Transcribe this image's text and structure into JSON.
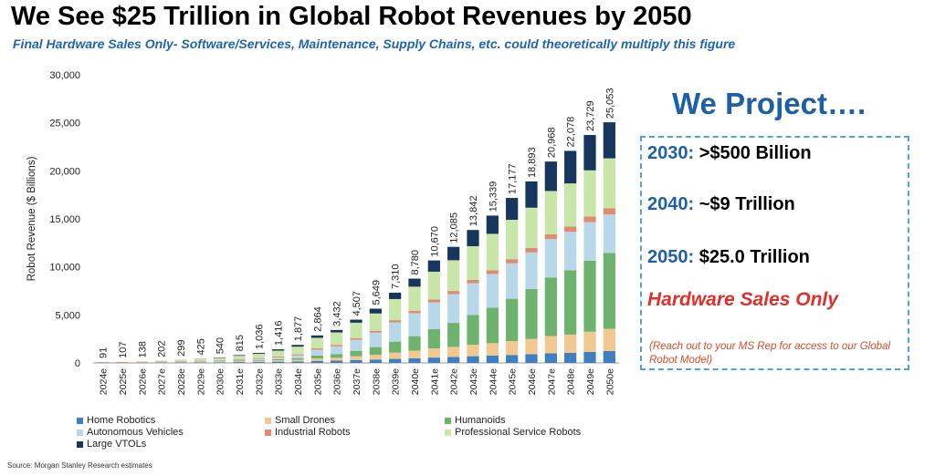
{
  "title": "We See $25 Trillion in Global Robot Revenues by 2050",
  "subtitle": "Final Hardware Sales Only- Software/Services, Maintenance, Supply Chains, etc. could theoretically multiply this figure",
  "source": "Source: Morgan Stanley Research estimates",
  "projection": {
    "heading": "We Project….",
    "lines": [
      {
        "year": "2030:",
        "value": ">$500 Billion"
      },
      {
        "year": "2040:",
        "value": "~$9 Trillion"
      },
      {
        "year": "2050:",
        "value": "$25.0 Trillion"
      }
    ],
    "hardware_note": "Hardware Sales Only",
    "contact_note": "(Reach out to your MS Rep for access to our Global Robot Model)"
  },
  "chart_data": {
    "type": "bar",
    "stacked": true,
    "ylabel": "Robot Revenue ($ Billions)",
    "xlabel": "",
    "ylim": [
      0,
      30000
    ],
    "yticks": [
      "0",
      "5,000",
      "10,000",
      "15,000",
      "20,000",
      "25,000",
      "30,000"
    ],
    "ytick_values": [
      0,
      5000,
      10000,
      15000,
      20000,
      25000,
      30000
    ],
    "categories": [
      "2024e",
      "2025e",
      "2026e",
      "2027e",
      "2028e",
      "2029e",
      "2030e",
      "2031e",
      "2032e",
      "2033e",
      "2034e",
      "2035e",
      "2036e",
      "2037e",
      "2038e",
      "2039e",
      "2040e",
      "2041e",
      "2042e",
      "2043e",
      "2044e",
      "2045e",
      "2046e",
      "2047e",
      "2048e",
      "2049e",
      "2050e"
    ],
    "totals": [
      91,
      107,
      138,
      202,
      299,
      425,
      540,
      815,
      1036,
      1416,
      1877,
      2864,
      3432,
      4507,
      5649,
      7310,
      8780,
      10670,
      12085,
      13842,
      15339,
      17177,
      18893,
      20968,
      22078,
      23729,
      25053
    ],
    "total_labels": [
      "91",
      "107",
      "138",
      "202",
      "299",
      "425",
      "540",
      "815",
      "1,036",
      "1,416",
      "1,877",
      "2,864",
      "3,432",
      "4,507",
      "5,649",
      "7,310",
      "8,780",
      "10,670",
      "12,085",
      "13,842",
      "15,339",
      "17,177",
      "18,893",
      "20,968",
      "22,078",
      "23,729",
      "25,053"
    ],
    "legend_position": "bottom",
    "series": [
      {
        "name": "Home Robotics",
        "color": "#3f7fc0",
        "values": [
          20,
          22,
          27,
          35,
          45,
          55,
          62,
          90,
          105,
          130,
          150,
          215,
          240,
          300,
          350,
          420,
          480,
          560,
          620,
          700,
          760,
          830,
          900,
          1000,
          1050,
          1150,
          1250
        ]
      },
      {
        "name": "Small Drones",
        "color": "#f0c890",
        "values": [
          15,
          17,
          20,
          27,
          35,
          45,
          55,
          90,
          110,
          150,
          180,
          260,
          300,
          400,
          500,
          650,
          800,
          950,
          1050,
          1200,
          1300,
          1450,
          1600,
          1800,
          1900,
          2100,
          2300
        ]
      },
      {
        "name": "Humanoids",
        "color": "#6db26d",
        "values": [
          2,
          3,
          4,
          8,
          15,
          25,
          35,
          60,
          80,
          120,
          170,
          300,
          380,
          560,
          800,
          1150,
          1500,
          2000,
          2500,
          3100,
          3700,
          4400,
          5200,
          6100,
          6700,
          7400,
          7900
        ]
      },
      {
        "name": "Autonomous Vehicles",
        "color": "#b8d8ea",
        "values": [
          5,
          6,
          8,
          12,
          20,
          35,
          50,
          75,
          110,
          180,
          280,
          600,
          800,
          1150,
          1500,
          2000,
          2400,
          2800,
          3000,
          3300,
          3500,
          3700,
          3800,
          4000,
          4000,
          4000,
          4000
        ]
      },
      {
        "name": "Industrial Robots",
        "color": "#e08a72",
        "values": [
          45,
          48,
          52,
          55,
          60,
          65,
          70,
          80,
          90,
          100,
          115,
          140,
          160,
          180,
          200,
          230,
          260,
          290,
          320,
          350,
          380,
          420,
          460,
          500,
          540,
          600,
          650
        ]
      },
      {
        "name": "Professional Service Robots",
        "color": "#c8e6a8",
        "values": [
          3,
          8,
          20,
          55,
          110,
          180,
          220,
          350,
          450,
          600,
          800,
          1100,
          1300,
          1600,
          1800,
          2200,
          2500,
          2900,
          3200,
          3500,
          3800,
          4100,
          4200,
          4500,
          4500,
          4800,
          5200
        ]
      },
      {
        "name": "Large VTOLs",
        "color": "#17365d",
        "values": [
          1,
          3,
          7,
          10,
          14,
          20,
          48,
          70,
          91,
          136,
          182,
          249,
          252,
          317,
          499,
          660,
          840,
          1170,
          1395,
          1692,
          1899,
          2277,
          2733,
          3068,
          3388,
          3679,
          3753
        ]
      }
    ]
  }
}
